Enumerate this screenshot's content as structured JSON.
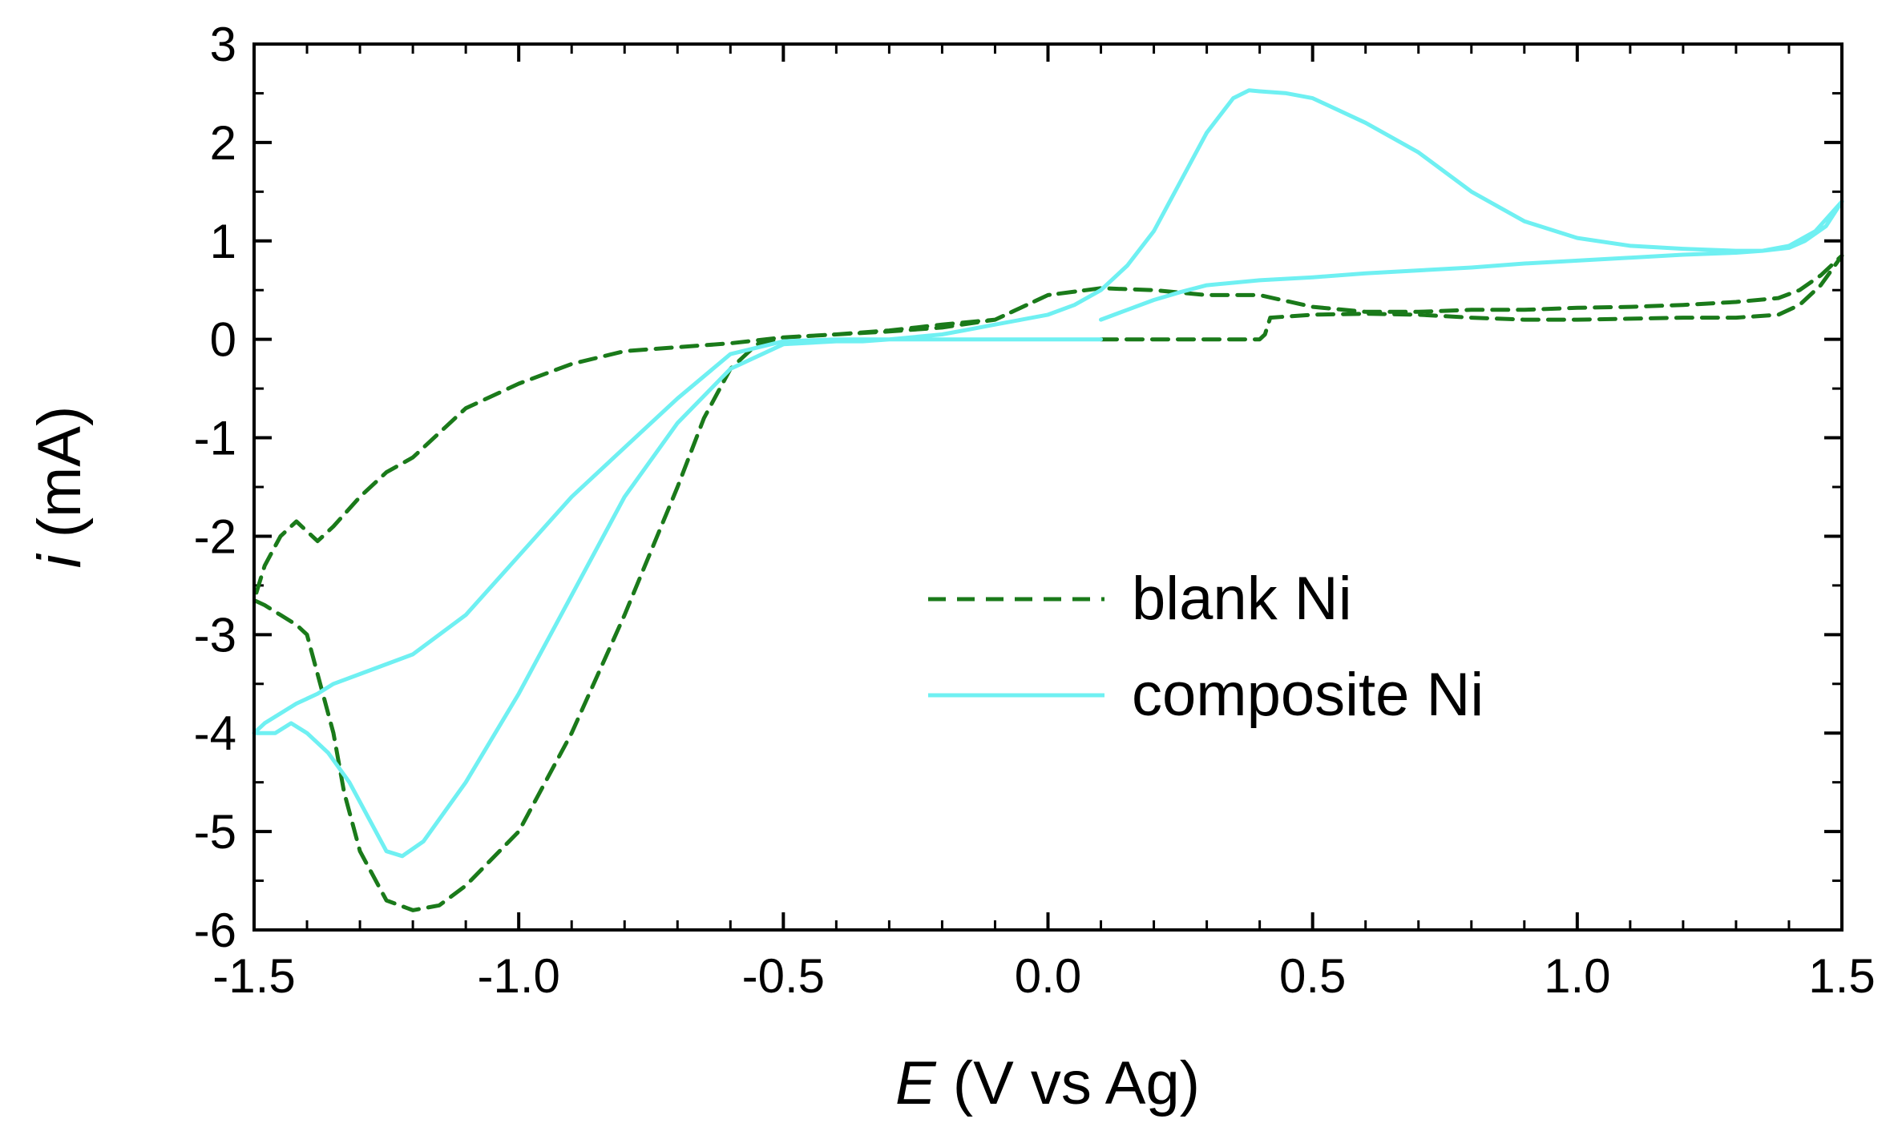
{
  "chart_data": {
    "type": "line",
    "title": "",
    "xlabel_symbol": "E",
    "xlabel_unit": " (V vs Ag)",
    "ylabel_symbol": "i",
    "ylabel_unit": " (mA)",
    "xlim": [
      -1.5,
      1.5
    ],
    "ylim": [
      -6,
      3
    ],
    "xticks": [
      -1.5,
      -1.0,
      -0.5,
      0.0,
      0.5,
      1.0,
      1.5
    ],
    "xtick_labels": [
      "-1.5",
      "-1.0",
      "-0.5",
      "0.0",
      "0.5",
      "1.0",
      "1.5"
    ],
    "yticks": [
      -6,
      -5,
      -4,
      -3,
      -2,
      -1,
      0,
      1,
      2,
      3
    ],
    "ytick_labels": [
      "-6",
      "-5",
      "-4",
      "-3",
      "-2",
      "-1",
      "0",
      "1",
      "2",
      "3"
    ],
    "legend_position": "center-right",
    "series": [
      {
        "name": "blank Ni",
        "color": "#1a7a1a",
        "style": "dashed",
        "x": [
          0.1,
          0.2,
          0.3,
          0.4,
          0.41,
          0.42,
          0.5,
          0.6,
          0.7,
          0.8,
          0.9,
          1.0,
          1.1,
          1.2,
          1.3,
          1.38,
          1.42,
          1.46,
          1.5,
          1.46,
          1.42,
          1.38,
          1.3,
          1.2,
          1.1,
          1.0,
          0.9,
          0.8,
          0.7,
          0.6,
          0.5,
          0.4,
          0.3,
          0.2,
          0.1,
          0.0,
          -0.1,
          -0.2,
          -0.3,
          -0.4,
          -0.5,
          -0.55,
          -0.6,
          -0.65,
          -0.7,
          -0.8,
          -0.9,
          -1.0,
          -1.1,
          -1.15,
          -1.2,
          -1.25,
          -1.3,
          -1.33,
          -1.35,
          -1.38,
          -1.4,
          -1.42,
          -1.45,
          -1.48,
          -1.5,
          -1.48,
          -1.45,
          -1.42,
          -1.4,
          -1.38,
          -1.35,
          -1.3,
          -1.25,
          -1.2,
          -1.1,
          -1.0,
          -0.9,
          -0.8,
          -0.7,
          -0.6,
          -0.5,
          -0.4,
          -0.3,
          -0.2,
          -0.1,
          0.0,
          0.1
        ],
        "y": [
          0.0,
          0.0,
          0.0,
          0.0,
          0.05,
          0.22,
          0.25,
          0.26,
          0.25,
          0.22,
          0.2,
          0.2,
          0.21,
          0.22,
          0.22,
          0.25,
          0.35,
          0.55,
          0.85,
          0.65,
          0.5,
          0.42,
          0.38,
          0.35,
          0.33,
          0.32,
          0.3,
          0.3,
          0.28,
          0.28,
          0.33,
          0.45,
          0.45,
          0.5,
          0.52,
          0.45,
          0.2,
          0.12,
          0.08,
          0.05,
          0.02,
          -0.05,
          -0.3,
          -0.8,
          -1.5,
          -2.8,
          -4.0,
          -5.0,
          -5.55,
          -5.75,
          -5.8,
          -5.7,
          -5.2,
          -4.6,
          -4.0,
          -3.4,
          -3.0,
          -2.9,
          -2.8,
          -2.7,
          -2.65,
          -2.3,
          -2.0,
          -1.85,
          -1.95,
          -2.05,
          -1.9,
          -1.6,
          -1.35,
          -1.2,
          -0.7,
          -0.45,
          -0.25,
          -0.12,
          -0.08,
          -0.04,
          0.02,
          0.05,
          0.09,
          0.15,
          0.2,
          0.45,
          0.52
        ]
      },
      {
        "name": "composite Ni",
        "color": "#6ff0f2",
        "style": "solid",
        "x": [
          0.1,
          0.15,
          0.2,
          0.25,
          0.3,
          0.4,
          0.5,
          0.6,
          0.7,
          0.8,
          0.9,
          1.0,
          1.1,
          1.2,
          1.3,
          1.35,
          1.4,
          1.45,
          1.5,
          1.47,
          1.43,
          1.4,
          1.35,
          1.3,
          1.2,
          1.1,
          1.0,
          0.9,
          0.8,
          0.7,
          0.6,
          0.5,
          0.45,
          0.4,
          0.38,
          0.35,
          0.3,
          0.25,
          0.2,
          0.15,
          0.1,
          0.05,
          0.0,
          -0.05,
          -0.1,
          -0.15,
          -0.2,
          -0.3,
          -0.35,
          -0.4,
          -0.5,
          -0.6,
          -0.7,
          -0.8,
          -0.9,
          -1.0,
          -1.1,
          -1.18,
          -1.22,
          -1.25,
          -1.28,
          -1.32,
          -1.36,
          -1.4,
          -1.43,
          -1.46,
          -1.5,
          -1.48,
          -1.45,
          -1.42,
          -1.38,
          -1.35,
          -1.3,
          -1.2,
          -1.1,
          -1.0,
          -0.9,
          -0.8,
          -0.7,
          -0.6,
          -0.5,
          -0.4,
          -0.3,
          -0.2,
          -0.1,
          0.0,
          0.1
        ],
        "y": [
          0.2,
          0.3,
          0.4,
          0.48,
          0.55,
          0.6,
          0.63,
          0.67,
          0.7,
          0.73,
          0.77,
          0.8,
          0.83,
          0.86,
          0.88,
          0.9,
          0.95,
          1.1,
          1.4,
          1.15,
          1.0,
          0.93,
          0.9,
          0.9,
          0.92,
          0.95,
          1.03,
          1.2,
          1.5,
          1.9,
          2.2,
          2.45,
          2.5,
          2.52,
          2.53,
          2.45,
          2.1,
          1.6,
          1.1,
          0.75,
          0.5,
          0.35,
          0.25,
          0.2,
          0.15,
          0.1,
          0.05,
          0.0,
          -0.02,
          -0.02,
          -0.05,
          -0.3,
          -0.85,
          -1.6,
          -2.6,
          -3.6,
          -4.5,
          -5.1,
          -5.25,
          -5.2,
          -4.9,
          -4.5,
          -4.2,
          -4.0,
          -3.9,
          -4.0,
          -4.0,
          -3.9,
          -3.8,
          -3.7,
          -3.6,
          -3.5,
          -3.4,
          -3.2,
          -2.8,
          -2.2,
          -1.6,
          -1.1,
          -0.6,
          -0.15,
          -0.02,
          0.0,
          0.0,
          0.0,
          0.0,
          0.0,
          0.0
        ]
      }
    ]
  }
}
